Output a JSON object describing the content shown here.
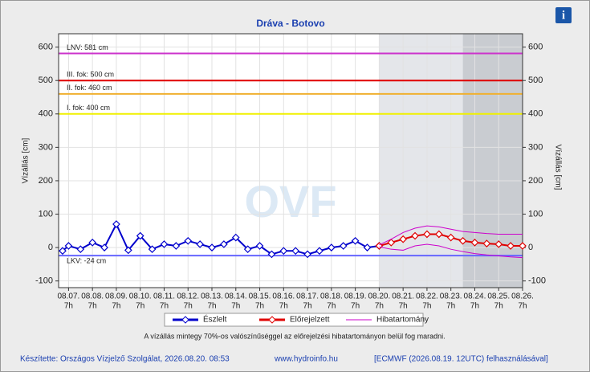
{
  "chart_data": {
    "type": "hydrograph",
    "title": "Dráva - Botovo",
    "ylabel": "Vízállás [cm]",
    "y2label": "Vízállás [cm]",
    "watermark": "OVF",
    "xlim": [
      -10,
      456
    ],
    "ylim": [
      -120,
      640
    ],
    "yticks": [
      -100,
      0,
      100,
      200,
      300,
      400,
      500,
      600
    ],
    "grid": true,
    "xticks": [
      {
        "value": 0,
        "label": "08.07."
      },
      {
        "value": 24,
        "label": "08.08."
      },
      {
        "value": 48,
        "label": "08.09."
      },
      {
        "value": 72,
        "label": "08.10."
      },
      {
        "value": 96,
        "label": "08.11."
      },
      {
        "value": 120,
        "label": "08.12."
      },
      {
        "value": 144,
        "label": "08.13."
      },
      {
        "value": 168,
        "label": "08.14."
      },
      {
        "value": 192,
        "label": "08.15."
      },
      {
        "value": 216,
        "label": "08.16."
      },
      {
        "value": 240,
        "label": "08.17."
      },
      {
        "value": 264,
        "label": "08.18."
      },
      {
        "value": 288,
        "label": "08.19."
      },
      {
        "value": 312,
        "label": "08.20."
      },
      {
        "value": 336,
        "label": "08.21."
      },
      {
        "value": 360,
        "label": "08.22."
      },
      {
        "value": 384,
        "label": "08.23."
      },
      {
        "value": 408,
        "label": "08.24."
      },
      {
        "value": 432,
        "label": "08.25."
      },
      {
        "value": 456,
        "label": "08.26."
      }
    ],
    "xtick_sublabel": "7h",
    "shaded_regions": [
      {
        "from": 312,
        "to": 396,
        "color": "#e4e6ea"
      },
      {
        "from": 396,
        "to": 456,
        "color": "#c9ccd1"
      }
    ],
    "thresholds": [
      {
        "label": "LNV: 581 cm",
        "value": 581,
        "color": "#cc33cc"
      },
      {
        "label": "III. fok: 500 cm",
        "value": 500,
        "color": "#e00000"
      },
      {
        "label": "II. fok: 460 cm",
        "value": 460,
        "color": "#f0b030"
      },
      {
        "label": "I. fok: 400 cm",
        "value": 400,
        "color": "#f0f000"
      },
      {
        "label": "LKV: -24 cm",
        "value": -24,
        "color": "#6666ff"
      }
    ],
    "series": [
      {
        "name": "Észlelt",
        "color": "#0000cc",
        "x": [
          -6,
          0,
          12,
          24,
          36,
          48,
          60,
          72,
          84,
          96,
          108,
          120,
          132,
          144,
          156,
          168,
          180,
          192,
          204,
          216,
          228,
          240,
          252,
          264,
          276,
          288,
          300,
          312
        ],
        "values": [
          -10,
          5,
          -5,
          15,
          0,
          70,
          -8,
          35,
          -5,
          10,
          5,
          20,
          10,
          0,
          10,
          30,
          -5,
          5,
          -20,
          -10,
          -10,
          -20,
          -10,
          0,
          5,
          20,
          0,
          5
        ]
      },
      {
        "name": "Előrejelzett",
        "color": "#e00000",
        "x": [
          312,
          324,
          336,
          348,
          360,
          372,
          384,
          396,
          408,
          420,
          432,
          444,
          456
        ],
        "values": [
          5,
          15,
          25,
          35,
          40,
          40,
          30,
          20,
          15,
          12,
          10,
          5,
          5
        ]
      },
      {
        "name": "Hibatartomány",
        "color": "#cc00cc",
        "x": [
          312,
          324,
          336,
          348,
          360,
          372,
          384,
          396,
          408,
          420,
          432,
          444,
          456
        ],
        "values": [
          8,
          25,
          45,
          58,
          65,
          62,
          55,
          48,
          45,
          42,
          40,
          40,
          40
        ],
        "lower": [
          2,
          -5,
          -8,
          5,
          10,
          5,
          -5,
          -12,
          -18,
          -22,
          -25,
          -28,
          -30
        ]
      }
    ],
    "note": "A vízállás mintegy 70%-os valószínűséggel az előrejelzési hibatartományon belül fog maradni.",
    "footer_left": "Készítette: Országos Vízjelző Szolgálat, 2026.08.20. 08:53",
    "footer_center": "www.hydroinfo.hu",
    "footer_right": "[ECMWF (2026.08.19. 12UTC) felhasználásával]",
    "info_icon": "i"
  }
}
